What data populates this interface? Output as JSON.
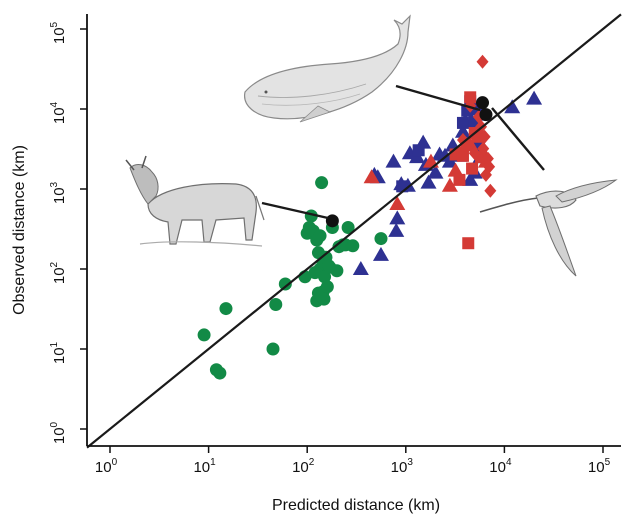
{
  "chart_data": {
    "type": "scatter",
    "xlabel": "Predicted distance (km)",
    "ylabel": "Observed distance (km)",
    "x_scale": "log",
    "y_scale": "log",
    "xlim": [
      0.6,
      150000
    ],
    "ylim": [
      0.6,
      200000
    ],
    "x_ticks": [
      {
        "base": "10",
        "exp": "0",
        "value": 1
      },
      {
        "base": "10",
        "exp": "1",
        "value": 10
      },
      {
        "base": "10",
        "exp": "2",
        "value": 100
      },
      {
        "base": "10",
        "exp": "3",
        "value": 1000
      },
      {
        "base": "10",
        "exp": "4",
        "value": 10000
      },
      {
        "base": "10",
        "exp": "5",
        "value": 100000
      }
    ],
    "y_ticks": [
      {
        "base": "10",
        "exp": "0",
        "value": 1
      },
      {
        "base": "10",
        "exp": "1",
        "value": 10
      },
      {
        "base": "10",
        "exp": "2",
        "value": 100
      },
      {
        "base": "10",
        "exp": "3",
        "value": 1000
      },
      {
        "base": "10",
        "exp": "4",
        "value": 10000
      },
      {
        "base": "10",
        "exp": "5",
        "value": 100000
      }
    ],
    "reference_line": "y = x",
    "grid": false,
    "illustrations": [
      "whale",
      "wildebeest",
      "shorebird"
    ],
    "series": [
      {
        "marker": "circle",
        "color": "#128a46",
        "points": [
          [
            9,
            15
          ],
          [
            12,
            5.5
          ],
          [
            13,
            5
          ],
          [
            15,
            32
          ],
          [
            45,
            10
          ],
          [
            48,
            36
          ],
          [
            60,
            65
          ],
          [
            95,
            80
          ],
          [
            100,
            280
          ],
          [
            105,
            330
          ],
          [
            110,
            460
          ],
          [
            115,
            300
          ],
          [
            120,
            90
          ],
          [
            125,
            40
          ],
          [
            125,
            230
          ],
          [
            130,
            50
          ],
          [
            130,
            160
          ],
          [
            135,
            100
          ],
          [
            135,
            260
          ],
          [
            140,
            45
          ],
          [
            140,
            1200
          ],
          [
            145,
            52
          ],
          [
            145,
            120
          ],
          [
            148,
            42
          ],
          [
            150,
            80
          ],
          [
            155,
            140
          ],
          [
            160,
            60
          ],
          [
            165,
            110
          ],
          [
            170,
            105
          ],
          [
            180,
            330
          ],
          [
            200,
            95
          ],
          [
            210,
            190
          ],
          [
            230,
            200
          ],
          [
            245,
            200
          ],
          [
            260,
            330
          ],
          [
            290,
            195
          ],
          [
            560,
            240
          ]
        ]
      },
      {
        "marker": "triangle",
        "color": "#2e3192",
        "points": [
          [
            350,
            100
          ],
          [
            480,
            1500
          ],
          [
            520,
            1400
          ],
          [
            560,
            150
          ],
          [
            750,
            2200
          ],
          [
            800,
            300
          ],
          [
            820,
            430
          ],
          [
            900,
            1150
          ],
          [
            1050,
            1100
          ],
          [
            1100,
            2800
          ],
          [
            1300,
            2500
          ],
          [
            1500,
            3800
          ],
          [
            1600,
            2000
          ],
          [
            1700,
            1200
          ],
          [
            2000,
            1600
          ],
          [
            2200,
            2700
          ],
          [
            2500,
            2600
          ],
          [
            2800,
            2200
          ],
          [
            3000,
            3500
          ],
          [
            3500,
            2600
          ],
          [
            3800,
            5200
          ],
          [
            4000,
            7000
          ],
          [
            4500,
            1300
          ],
          [
            4500,
            11000
          ],
          [
            5000,
            1600
          ],
          [
            5500,
            4000
          ],
          [
            5700,
            2500
          ],
          [
            12000,
            10500
          ],
          [
            20000,
            13500
          ]
        ]
      },
      {
        "marker": "square",
        "color": "#2e3192",
        "points": [
          [
            920,
            1080
          ],
          [
            1350,
            3050
          ],
          [
            3800,
            6700
          ],
          [
            4200,
            9500
          ],
          [
            4500,
            12500
          ],
          [
            5000,
            7000
          ],
          [
            5200,
            3200
          ],
          [
            5500,
            10000
          ],
          [
            6000,
            8500
          ]
        ]
      },
      {
        "marker": "triangle",
        "color": "#d43a35",
        "points": [
          [
            450,
            1400
          ],
          [
            820,
            650
          ],
          [
            1800,
            2200
          ],
          [
            2800,
            1100
          ],
          [
            3200,
            1700
          ],
          [
            3500,
            2800
          ],
          [
            4500,
            3600
          ],
          [
            6500,
            2200
          ]
        ]
      },
      {
        "marker": "square",
        "color": "#d43a35",
        "points": [
          [
            3200,
            2700
          ],
          [
            3500,
            1300
          ],
          [
            3800,
            2600
          ],
          [
            4100,
            3500
          ],
          [
            4300,
            210
          ],
          [
            4500,
            14000
          ],
          [
            4700,
            1800
          ],
          [
            5000,
            5000
          ],
          [
            5400,
            4500
          ],
          [
            5800,
            2500
          ]
        ]
      },
      {
        "marker": "diamond",
        "color": "#d43a35",
        "points": [
          [
            3800,
            4100
          ],
          [
            4500,
            11000
          ],
          [
            5000,
            2800
          ],
          [
            5500,
            8000
          ],
          [
            5800,
            6000
          ],
          [
            6000,
            39000
          ],
          [
            6100,
            3200
          ],
          [
            6300,
            4500
          ],
          [
            6500,
            1500
          ],
          [
            6800,
            2400
          ],
          [
            7000,
            1900
          ],
          [
            7200,
            950
          ]
        ]
      },
      {
        "marker": "circle",
        "color": "#111111",
        "points": [
          [
            180,
            400
          ],
          [
            6000,
            12000
          ],
          [
            6500,
            8500
          ]
        ]
      }
    ]
  }
}
